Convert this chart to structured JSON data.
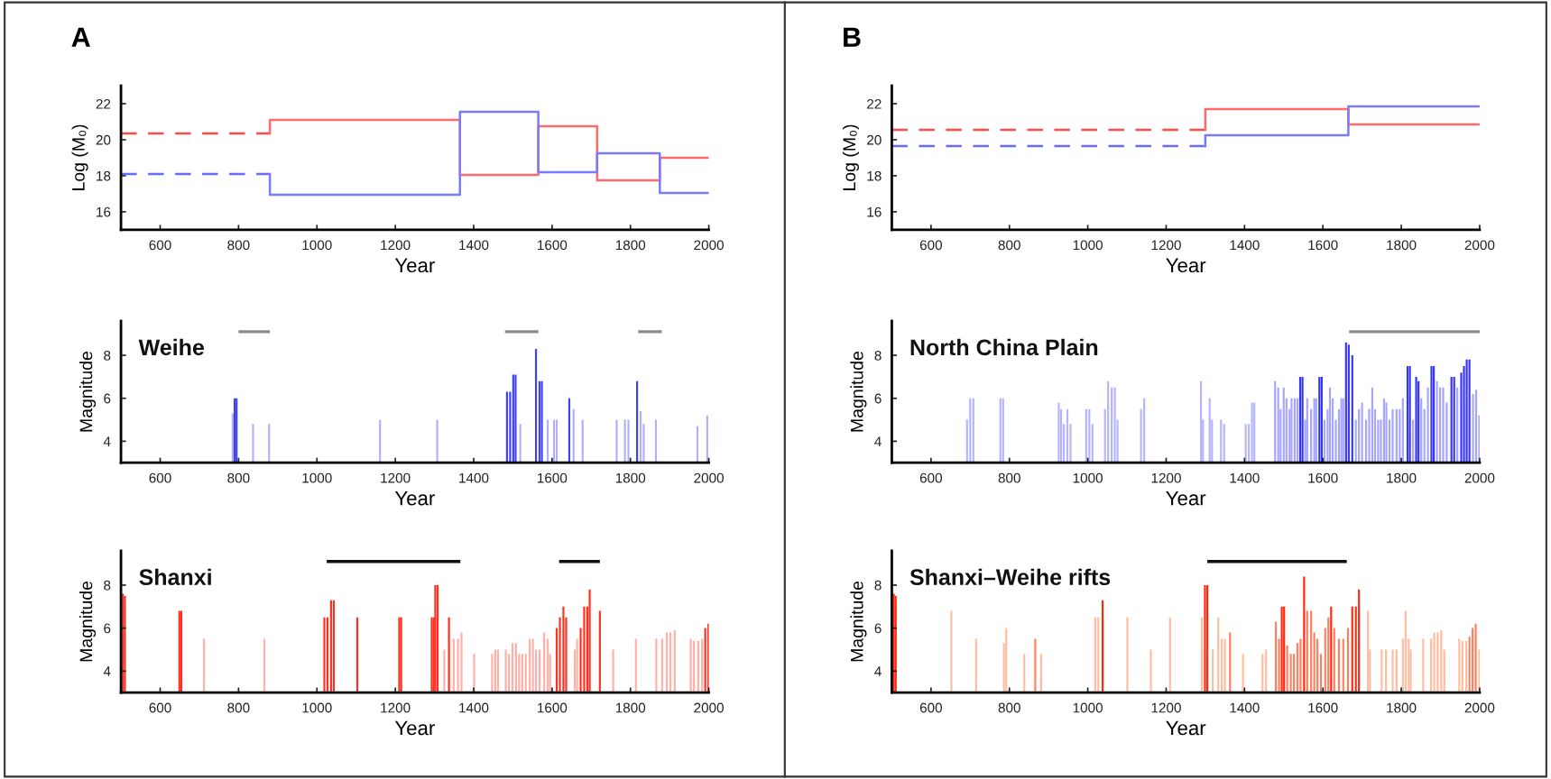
{
  "chart_data": [
    {
      "type": "step",
      "annotations": [
        "A"
      ],
      "xlabel": "Year",
      "ylabel": "Log (M₀)",
      "xlim": [
        500,
        2000
      ],
      "xticks": [
        600,
        800,
        1000,
        1200,
        1400,
        1600,
        1800,
        2000
      ],
      "ylim": [
        15,
        23
      ],
      "yticks": [
        16,
        18,
        20,
        22
      ],
      "series": [
        {
          "color": "#ff4a4a",
          "line_style": "dashed",
          "x": [
            500,
            880
          ],
          "values": [
            20.35,
            20.35
          ]
        },
        {
          "color": "#ff6a6a",
          "line_style": "solid",
          "x": [
            880,
            880,
            1365,
            1565,
            1715,
            1875,
            2000
          ],
          "values": [
            20.35,
            21.1,
            18.05,
            20.75,
            17.75,
            19.0,
            19.0
          ]
        },
        {
          "color": "#6a6aff",
          "line_style": "dashed",
          "x": [
            500,
            880
          ],
          "values": [
            18.1,
            18.1
          ]
        },
        {
          "color": "#7a7aff",
          "line_style": "solid",
          "x": [
            880,
            880,
            1365,
            1565,
            1715,
            1875,
            2000
          ],
          "values": [
            18.1,
            16.95,
            21.55,
            18.2,
            19.25,
            17.05,
            17.05
          ]
        }
      ]
    },
    {
      "type": "step",
      "annotations": [
        "B"
      ],
      "xlabel": "Year",
      "ylabel": "Log (M₀)",
      "xlim": [
        500,
        2000
      ],
      "xticks": [
        600,
        800,
        1000,
        1200,
        1400,
        1600,
        1800,
        2000
      ],
      "ylim": [
        15,
        23
      ],
      "yticks": [
        16,
        18,
        20,
        22
      ],
      "series": [
        {
          "color": "#ff4a4a",
          "line_style": "dashed",
          "x": [
            500,
            1300
          ],
          "values": [
            20.55,
            20.55
          ]
        },
        {
          "color": "#ff6a6a",
          "line_style": "solid",
          "x": [
            1300,
            1300,
            1665,
            2000
          ],
          "values": [
            20.55,
            21.7,
            20.85,
            20.85
          ]
        },
        {
          "color": "#6a6aff",
          "line_style": "dashed",
          "x": [
            500,
            1300
          ],
          "values": [
            19.65,
            19.65
          ]
        },
        {
          "color": "#7a7aff",
          "line_style": "solid",
          "x": [
            1300,
            1300,
            1665,
            2000
          ],
          "values": [
            19.65,
            20.25,
            21.85,
            21.85
          ]
        }
      ]
    },
    {
      "type": "bar",
      "title": "Weihe",
      "xlabel": "Year",
      "ylabel": "Magnitude",
      "xlim": [
        500,
        2000
      ],
      "xticks": [
        600,
        800,
        1000,
        1200,
        1400,
        1600,
        1800,
        2000
      ],
      "ylim": [
        3,
        9.6
      ],
      "yticks": [
        4,
        6,
        8
      ],
      "series": [
        {
          "color": "#b0b0ff",
          "x": [
            785,
            837,
            878,
            1161,
            1307,
            1519,
            1589,
            1605,
            1612,
            1655,
            1678,
            1765,
            1786,
            1795,
            1826,
            1834,
            1865,
            1971,
            1996
          ],
          "values": [
            5.3,
            4.8,
            4.8,
            5.0,
            5.0,
            4.8,
            5.0,
            5.0,
            5.0,
            5.5,
            5.0,
            5.0,
            5.0,
            5.0,
            5.4,
            4.8,
            5.0,
            4.7,
            5.2
          ]
        },
        {
          "color": "#4040f5",
          "x": [
            790,
            795,
            1485,
            1493,
            1501,
            1507,
            1559,
            1568,
            1574,
            1644,
            1817
          ],
          "values": [
            6.0,
            6.0,
            6.3,
            6.3,
            7.1,
            7.1,
            8.3,
            6.8,
            6.8,
            6.0,
            6.8
          ]
        },
        {
          "type": "line",
          "color": "#8a8a8a",
          "x": [
            800,
            880,
            881,
            1480,
            1565,
            1566,
            1820,
            1880
          ],
          "values": [
            9.1,
            9.1,
            null,
            9.1,
            9.1,
            null,
            9.1,
            9.1
          ]
        }
      ]
    },
    {
      "type": "bar",
      "title": "North China Plain",
      "xlabel": "Year",
      "ylabel": "Magnitude",
      "xlim": [
        500,
        2000
      ],
      "xticks": [
        600,
        800,
        1000,
        1200,
        1400,
        1600,
        1800,
        2000
      ],
      "ylim": [
        3,
        9.6
      ],
      "yticks": [
        4,
        6,
        8
      ],
      "series": [
        {
          "color": "#b4b4ff",
          "x": [
            692,
            700,
            708,
            777,
            784,
            926,
            932,
            939,
            948,
            956,
            996,
            1004,
            1012,
            1044,
            1052,
            1061,
            1069,
            1076,
            1136,
            1144,
            1289,
            1294,
            1311,
            1317,
            1340,
            1348,
            1403,
            1411,
            1419,
            1425
          ],
          "values": [
            5.0,
            6.0,
            6.0,
            6.0,
            6.0,
            5.8,
            5.5,
            4.8,
            5.5,
            4.8,
            5.5,
            5.5,
            4.8,
            5.5,
            6.8,
            6.5,
            6.5,
            5.0,
            5.5,
            6.0,
            6.8,
            5.0,
            6.0,
            5.0,
            5.0,
            4.8,
            4.8,
            4.8,
            5.8,
            5.8
          ]
        },
        {
          "color": "#a6a6ff",
          "x": [
            1478,
            1486,
            1492,
            1500,
            1507,
            1515,
            1520,
            1528,
            1535,
            1555,
            1560,
            1570,
            1578,
            1583,
            1604,
            1612,
            1618,
            1625,
            1633,
            1641,
            1647,
            1652,
            1684,
            1692,
            1700,
            1710,
            1718,
            1726,
            1733,
            1741,
            1748,
            1756,
            1762,
            1770,
            1778,
            1788,
            1796,
            1804,
            1830,
            1851,
            1859,
            1868,
            1891,
            1899,
            1907,
            1916,
            1943,
            1983,
            1991,
            1999
          ],
          "values": [
            6.8,
            6.5,
            5.5,
            6.5,
            6.0,
            5.5,
            6.0,
            6.0,
            6.0,
            5.0,
            6.0,
            5.5,
            6.0,
            6.0,
            5.0,
            5.5,
            6.5,
            6.0,
            5.0,
            5.5,
            6.0,
            6.0,
            5.0,
            5.5,
            5.8,
            5.0,
            5.5,
            6.5,
            5.5,
            5.0,
            5.0,
            6.0,
            5.8,
            5.0,
            5.5,
            5.5,
            5.5,
            6.0,
            5.0,
            6.0,
            5.5,
            6.5,
            6.8,
            6.5,
            6.5,
            5.8,
            6.5,
            6.2,
            6.4,
            5.2
          ]
        },
        {
          "color": "#3535f5",
          "x": [
            1542,
            1548,
            1591,
            1597,
            1659,
            1666,
            1675,
            1816,
            1822,
            1838,
            1844,
            1877,
            1883,
            1928,
            1935,
            1953,
            1960,
            1967,
            1974
          ],
          "values": [
            7.0,
            7.0,
            7.0,
            7.0,
            8.6,
            8.5,
            8.0,
            7.5,
            7.5,
            7.0,
            6.8,
            7.5,
            7.5,
            7.0,
            7.0,
            7.2,
            7.5,
            7.8,
            7.8
          ]
        },
        {
          "type": "line",
          "color": "#8a8a8a",
          "x": [
            1667,
            2000
          ],
          "values": [
            9.1,
            9.1
          ]
        }
      ]
    },
    {
      "type": "bar",
      "title": "Shanxi",
      "xlabel": "Year",
      "ylabel": "Magnitude",
      "xlim": [
        500,
        2000
      ],
      "xticks": [
        600,
        800,
        1000,
        1200,
        1400,
        1600,
        1800,
        2000
      ],
      "ylim": [
        3,
        9.6
      ],
      "yticks": [
        4,
        6,
        8
      ],
      "series": [
        {
          "color": "#ffb0a8",
          "x": [
            712,
            866,
            1325,
            1349,
            1360,
            1369,
            1401,
            1447,
            1455,
            1462,
            1482,
            1490,
            1499,
            1508,
            1516,
            1524,
            1533,
            1543,
            1551,
            1559,
            1568,
            1580,
            1589,
            1595,
            1658,
            1664,
            1756,
            1814,
            1866,
            1881,
            1893,
            1902,
            1913,
            1954,
            1962,
            1973,
            1983
          ],
          "values": [
            5.5,
            5.5,
            5.0,
            5.5,
            5.5,
            5.8,
            4.8,
            4.8,
            5.0,
            5.0,
            5.0,
            4.8,
            5.3,
            5.3,
            4.8,
            4.8,
            4.8,
            5.5,
            5.5,
            5.0,
            5.0,
            5.8,
            5.5,
            4.8,
            5.0,
            5.5,
            5.0,
            5.5,
            5.5,
            5.5,
            5.8,
            5.8,
            5.9,
            5.5,
            5.4,
            5.4,
            5.5
          ]
        },
        {
          "color": "#ff3020",
          "x": [
            505,
            510,
            649,
            654,
            1019,
            1027,
            1036,
            1043,
            1103,
            1210,
            1215,
            1293,
            1298,
            1302,
            1308,
            1337,
            1612,
            1620,
            1629,
            1636,
            1673,
            1682,
            1690,
            1696,
            1722,
            1991,
            1999
          ],
          "values": [
            7.6,
            7.5,
            6.8,
            6.8,
            6.5,
            6.5,
            7.3,
            7.3,
            6.5,
            6.5,
            6.5,
            6.5,
            6.5,
            8.0,
            8.0,
            6.5,
            6.0,
            6.5,
            7.0,
            6.5,
            6.0,
            7.0,
            7.0,
            7.8,
            6.8,
            6.0,
            6.2
          ]
        },
        {
          "type": "line",
          "color": "#111111",
          "x": [
            1025,
            1366,
            1367,
            1618,
            1722
          ],
          "values": [
            9.1,
            9.1,
            null,
            9.1,
            9.1
          ]
        }
      ]
    },
    {
      "type": "bar",
      "title": "Shanxi–Weihe rifts",
      "xlabel": "Year",
      "ylabel": "Magnitude",
      "xlim": [
        500,
        2000
      ],
      "xticks": [
        600,
        800,
        1000,
        1200,
        1400,
        1600,
        1800,
        2000
      ],
      "ylim": [
        3,
        9.6
      ],
      "yticks": [
        4,
        6,
        8
      ],
      "series": [
        {
          "color": "#ffbca0",
          "x": [
            652,
            715,
            786,
            792,
            838,
            881,
            1019,
            1027,
            1101,
            1161,
            1210,
            1291,
            1319,
            1333,
            1342,
            1350,
            1396,
            1446,
            1455,
            1715,
            1720,
            1750,
            1761,
            1778,
            1788,
            1804,
            1811,
            1819,
            1824,
            1856,
            1876,
            1884,
            1893,
            1902,
            1910,
            1948,
            1956,
            1966,
            1999
          ],
          "values": [
            6.8,
            5.5,
            5.3,
            6.0,
            4.8,
            4.8,
            6.5,
            6.5,
            6.5,
            5.0,
            6.5,
            6.5,
            5.0,
            6.5,
            5.5,
            5.5,
            4.8,
            4.8,
            5.0,
            6.8,
            5.0,
            5.0,
            5.0,
            5.0,
            5.0,
            5.5,
            6.8,
            5.5,
            5.0,
            5.5,
            5.5,
            5.8,
            5.8,
            5.9,
            5.0,
            5.5,
            5.4,
            5.4,
            5.0
          ]
        },
        {
          "color": "#ff8060",
          "x": [
            866,
            1363,
            1480,
            1488,
            1509,
            1518,
            1526,
            1535,
            1543,
            1560,
            1570,
            1578,
            1586,
            1595,
            1606,
            1614,
            1629,
            1641,
            1652,
            1664,
            1974,
            1982,
            1990
          ],
          "values": [
            5.5,
            5.8,
            6.3,
            5.5,
            5.2,
            4.8,
            4.8,
            5.3,
            5.5,
            6.8,
            6.8,
            5.8,
            5.5,
            4.8,
            6.0,
            6.5,
            6.0,
            5.5,
            5.5,
            6.0,
            5.6,
            6.0,
            6.2
          ]
        },
        {
          "color": "#ff2a10",
          "x": [
            505,
            510,
            1038,
            1299,
            1305,
            1495,
            1501,
            1552,
            1621,
            1675,
            1684,
            1692
          ],
          "values": [
            7.6,
            7.5,
            7.3,
            8.0,
            8.0,
            7.0,
            7.0,
            8.4,
            7.0,
            7.0,
            7.0,
            7.8
          ]
        },
        {
          "type": "line",
          "color": "#111111",
          "x": [
            1305,
            1661
          ],
          "values": [
            9.1,
            9.1
          ]
        }
      ]
    }
  ]
}
